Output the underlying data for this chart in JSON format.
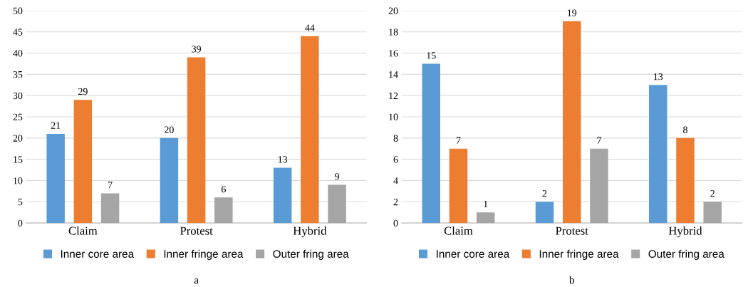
{
  "chart_data": [
    {
      "type": "bar",
      "categories": [
        "Claim",
        "Protest",
        "Hybrid"
      ],
      "series": [
        {
          "name": "Inner core area",
          "color": "#5b9bd5",
          "values": [
            21,
            20,
            13
          ]
        },
        {
          "name": "Inner fringe area",
          "color": "#ed7d31",
          "values": [
            29,
            39,
            44
          ]
        },
        {
          "name": "Outer fring area",
          "color": "#a5a5a5",
          "values": [
            7,
            6,
            9
          ]
        }
      ],
      "ylim": [
        0,
        50
      ],
      "yticks": [
        0,
        5,
        10,
        15,
        20,
        25,
        30,
        35,
        40,
        45,
        50
      ],
      "grid": "y",
      "legend": "bottom",
      "data_labels": true,
      "annotations": [
        "a"
      ]
    },
    {
      "type": "bar",
      "categories": [
        "Claim",
        "Protest",
        "Hybrid"
      ],
      "series": [
        {
          "name": "Inner core area",
          "color": "#5b9bd5",
          "values": [
            15,
            2,
            13
          ]
        },
        {
          "name": "Inner fringe area",
          "color": "#ed7d31",
          "values": [
            7,
            19,
            8
          ]
        },
        {
          "name": "Outer fring area",
          "color": "#a5a5a5",
          "values": [
            1,
            7,
            2
          ]
        }
      ],
      "ylim": [
        0,
        20
      ],
      "yticks": [
        0,
        2,
        4,
        6,
        8,
        10,
        12,
        14,
        16,
        18,
        20
      ],
      "grid": "y",
      "legend": "bottom",
      "data_labels": true,
      "annotations": [
        "b"
      ]
    }
  ]
}
